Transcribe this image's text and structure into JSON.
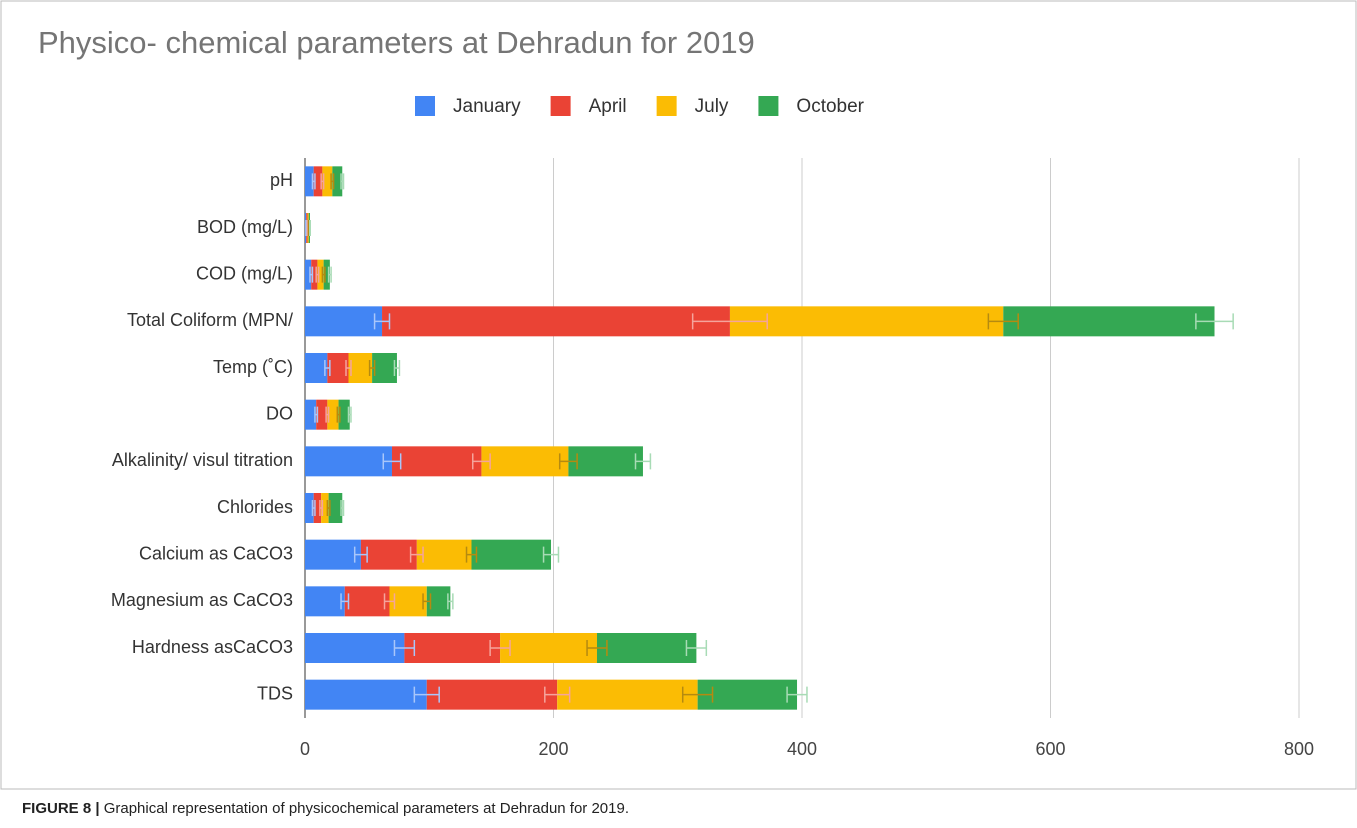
{
  "chart_data": {
    "type": "stacked-bar-horizontal",
    "title": "Physico- chemical parameters at Dehradun for 2019",
    "categories": [
      "pH",
      "BOD (mg/L)",
      "COD (mg/L)",
      "Total Coliform (MPN/",
      "Temp (˚C)",
      "DO",
      "Alkalinity/ visul titration",
      "Chlorides",
      "Calcium as CaCO3",
      "Magnesium as CaCO3",
      "Hardness asCaCO3",
      "TDS"
    ],
    "series": [
      {
        "name": "January",
        "color": "#4285f4",
        "error_color": "#a9c6fa",
        "values": [
          7,
          1,
          5,
          62,
          18,
          9,
          70,
          7,
          45,
          32,
          80,
          98
        ],
        "errors": [
          1,
          0.2,
          1,
          6,
          2,
          1,
          7,
          1,
          5,
          3,
          8,
          10
        ]
      },
      {
        "name": "April",
        "color": "#ea4335",
        "error_color": "#f5a49c",
        "values": [
          7,
          1,
          5,
          280,
          17,
          9,
          72,
          6,
          45,
          36,
          77,
          105
        ],
        "errors": [
          1,
          0.2,
          1,
          30,
          2,
          1,
          7,
          1,
          5,
          4,
          8,
          10
        ]
      },
      {
        "name": "July",
        "color": "#fbbc04",
        "error_color": "#b58a10",
        "values": [
          8,
          1,
          5,
          220,
          19,
          9,
          70,
          6,
          44,
          30,
          78,
          113
        ],
        "errors": [
          1,
          0.2,
          1,
          12,
          2,
          1,
          7,
          1,
          4,
          3,
          8,
          12
        ]
      },
      {
        "name": "October",
        "color": "#34a853",
        "error_color": "#a8dbb5",
        "values": [
          8,
          1,
          5,
          170,
          20,
          9,
          60,
          11,
          64,
          19,
          80,
          80
        ],
        "errors": [
          1,
          0.2,
          1,
          15,
          2,
          1,
          6,
          1,
          6,
          2,
          8,
          8
        ]
      }
    ],
    "xlim": [
      0,
      800
    ],
    "xticks": [
      0,
      200,
      400,
      600,
      800
    ],
    "grid": true,
    "legend": "top"
  },
  "caption": {
    "label": "FIGURE 8 |",
    "text": " Graphical representation of physicochemical parameters at Dehradun for 2019."
  }
}
